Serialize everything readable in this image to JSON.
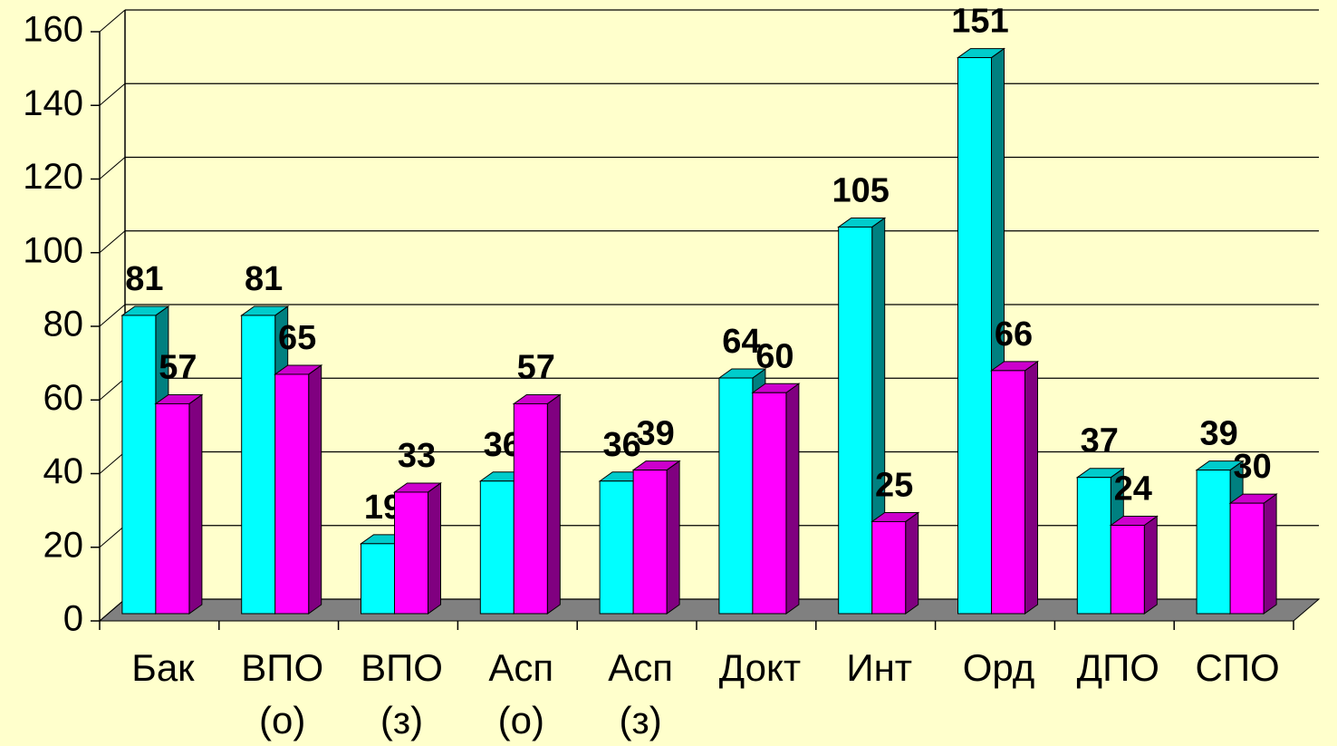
{
  "chart_data": {
    "type": "bar3d",
    "categories": [
      [
        "Бак"
      ],
      [
        "ВПО",
        "(о)"
      ],
      [
        "ВПО",
        "(з)"
      ],
      [
        "Асп",
        "(о)"
      ],
      [
        "Асп",
        "(з)"
      ],
      [
        "Докт"
      ],
      [
        "Инт"
      ],
      [
        "Орд"
      ],
      [
        "ДПО"
      ],
      [
        "СПО"
      ]
    ],
    "series": [
      {
        "color": "#00ffff",
        "values": [
          81,
          81,
          19,
          36,
          36,
          64,
          105,
          151,
          37,
          39
        ]
      },
      {
        "color": "#ff00ff",
        "values": [
          57,
          65,
          33,
          57,
          39,
          60,
          25,
          66,
          24,
          30
        ]
      }
    ],
    "ylim": [
      0,
      160
    ],
    "yticks": [
      0,
      20,
      40,
      60,
      80,
      100,
      120,
      140,
      160
    ],
    "grid": true
  }
}
